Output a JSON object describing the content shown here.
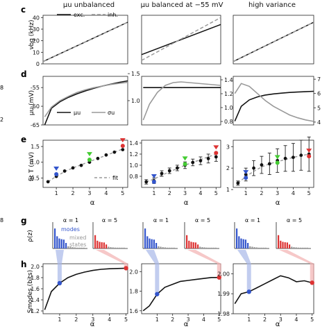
{
  "colors": {
    "exc": "#111111",
    "inh": "#999999",
    "blue": "#3355cc",
    "green": "#44cc33",
    "red": "#dd3333",
    "gray_curve": "#999999",
    "blue_light": "#a8b8e8",
    "red_light": "#f2b0b0"
  },
  "columns": [
    {
      "title": "μu unbalanced"
    },
    {
      "title": "μu balanced at −55 mV"
    },
    {
      "title": "high variance"
    }
  ],
  "rows": {
    "c": {
      "letter": "c",
      "ylabel": "νbg (kHz)",
      "yticks": [
        "0",
        "10",
        "20",
        "30",
        "40"
      ],
      "legend": {
        "exc": "exc.",
        "inh": "inh."
      }
    },
    "d": {
      "letter": "d",
      "ylabel": "μu (mV)",
      "yticks_left": [
        "-65",
        "-60",
        "-55"
      ],
      "yticks_right_1": [
        "1.0",
        "1.5"
      ],
      "yticks_right_2": [
        "0.8",
        "1.0",
        "1.2",
        "1.4"
      ],
      "yticks_right_3": [
        "4",
        "5",
        "6",
        "7"
      ],
      "legend": {
        "mu": "μu",
        "sigma": "σu"
      }
    },
    "e": {
      "letter": "e",
      "ylabel": "fit T (mV)",
      "xlabel": "α",
      "xticks": [
        "1",
        "2",
        "3",
        "4",
        "5"
      ],
      "yticks_1": [
        "0.5",
        "1.0",
        "1.5"
      ],
      "yticks_2": [
        "0.8",
        "1.0",
        "1.2",
        "1.4"
      ],
      "yticks_3": [
        "1",
        "2",
        "3"
      ],
      "legend": {
        "fit": "fit"
      }
    },
    "g": {
      "letter": "g",
      "ylabel": "ρ(z)",
      "alpha1": "α = 1",
      "alpha5": "α = 5",
      "modes": "modes",
      "mixed": "mixed",
      "states": "states"
    },
    "h": {
      "letter": "h",
      "ylabel": "Smodes (bits)",
      "xlabel": "α",
      "xticks": [
        "1",
        "2",
        "3",
        "4",
        "5"
      ],
      "yticks_1": [
        "1.2",
        "1.4",
        "1.6",
        "1.8",
        "2.0"
      ],
      "yticks_2": [
        "1.6",
        "1.8",
        "2.0"
      ],
      "yticks_3": [
        "1.98",
        "1.99",
        "2.00"
      ]
    }
  },
  "chart_data": [
    {
      "type": "line",
      "panel": "c1",
      "x": [
        0,
        5
      ],
      "series": [
        {
          "name": "exc.",
          "values": [
            2,
            36
          ]
        },
        {
          "name": "inh.",
          "values": [
            2,
            36
          ]
        }
      ],
      "ylim": [
        0,
        42
      ]
    },
    {
      "type": "line",
      "panel": "c2",
      "x": [
        0,
        5
      ],
      "series": [
        {
          "name": "exc.",
          "values": [
            8,
            34
          ]
        },
        {
          "name": "inh.",
          "values": [
            3,
            40
          ]
        }
      ],
      "ylim": [
        0,
        42
      ]
    },
    {
      "type": "line",
      "panel": "c3",
      "x": [
        0,
        5
      ],
      "series": [
        {
          "name": "exc.",
          "values": [
            2,
            36
          ]
        },
        {
          "name": "inh.",
          "values": [
            2,
            36
          ]
        }
      ],
      "ylim": [
        0,
        42
      ]
    },
    {
      "type": "line",
      "panel": "d1",
      "x": [
        0.1,
        0.5,
        1,
        1.5,
        2,
        2.5,
        3,
        3.5,
        4,
        4.5,
        5
      ],
      "series": [
        {
          "name": "μu",
          "values": [
            -65,
            -60.5,
            -58.8,
            -57.6,
            -56.7,
            -55.9,
            -55.2,
            -54.6,
            -54.1,
            -53.6,
            -53.2
          ]
        },
        {
          "name": "σu",
          "values": [
            0.7,
            0.88,
            1.0,
            1.08,
            1.15,
            1.2,
            1.24,
            1.27,
            1.3,
            1.32,
            1.34
          ]
        }
      ]
    },
    {
      "type": "line",
      "panel": "d2",
      "x": [
        0.1,
        0.5,
        1,
        1.5,
        2,
        2.5,
        3,
        3.5,
        4,
        4.5,
        5
      ],
      "series": [
        {
          "name": "μu",
          "values": [
            -55,
            -55,
            -55,
            -55,
            -55,
            -55,
            -55,
            -55,
            -55,
            -55,
            -55
          ]
        },
        {
          "name": "σu",
          "values": [
            0.82,
            1.05,
            1.22,
            1.32,
            1.36,
            1.37,
            1.36,
            1.35,
            1.34,
            1.33,
            1.32
          ]
        }
      ]
    },
    {
      "type": "line",
      "panel": "d3",
      "x": [
        0.1,
        0.5,
        1,
        1.5,
        2,
        2.5,
        3,
        3.5,
        4,
        4.5,
        5
      ],
      "series": [
        {
          "name": "μu",
          "values": [
            -64,
            -60,
            -58.3,
            -57.5,
            -57,
            -56.7,
            -56.5,
            -56.3,
            -56.2,
            -56.1,
            -56
          ]
        },
        {
          "name": "σu",
          "values": [
            6.0,
            6.7,
            6.5,
            6.0,
            5.5,
            5.1,
            4.8,
            4.5,
            4.3,
            4.15,
            4.05
          ]
        }
      ]
    },
    {
      "type": "scatter",
      "panel": "e1",
      "x": [
        0.5,
        1,
        1.5,
        2,
        2.5,
        3,
        3.5,
        4,
        4.5,
        5
      ],
      "series": [
        {
          "name": "T",
          "values": [
            0.38,
            0.55,
            0.72,
            0.82,
            0.9,
            1.0,
            1.12,
            1.23,
            1.32,
            1.4
          ]
        },
        {
          "name": "fit",
          "values": [
            0.38,
            0.55,
            0.7,
            0.82,
            0.92,
            1.02,
            1.12,
            1.22,
            1.32,
            1.42
          ]
        }
      ],
      "markers": [
        {
          "x": 1,
          "y": 0.62,
          "color": "blue"
        },
        {
          "x": 3,
          "y": 1.08,
          "color": "green"
        },
        {
          "x": 5,
          "y": 1.52,
          "color": "red"
        }
      ],
      "ylim": [
        0.2,
        1.7
      ]
    },
    {
      "type": "scatter",
      "panel": "e2",
      "x": [
        0.5,
        1,
        1.5,
        2,
        2.5,
        3,
        3.5,
        4,
        4.5,
        5
      ],
      "series": [
        {
          "name": "T",
          "values": [
            0.7,
            0.72,
            0.85,
            0.9,
            0.95,
            1.0,
            1.05,
            1.08,
            1.12,
            1.15
          ]
        },
        {
          "name": "fit",
          "values": [
            0.7,
            0.75,
            0.82,
            0.88,
            0.94,
            1.0,
            1.05,
            1.1,
            1.15,
            1.2
          ]
        }
      ],
      "err": [
        0.04,
        0.05,
        0.05,
        0.05,
        0.05,
        0.06,
        0.06,
        0.07,
        0.08,
        0.08
      ],
      "markers": [
        {
          "x": 1,
          "y": 0.7,
          "color": "blue"
        },
        {
          "x": 3,
          "y": 1.02,
          "color": "green"
        },
        {
          "x": 5,
          "y": 1.22,
          "color": "red"
        }
      ],
      "ylim": [
        0.6,
        1.45
      ]
    },
    {
      "type": "scatter",
      "panel": "e3",
      "x": [
        0.5,
        1,
        1.5,
        2,
        2.5,
        3,
        3.5,
        4,
        4.5,
        5
      ],
      "series": [
        {
          "name": "T",
          "values": [
            1.3,
            1.7,
            2.0,
            2.15,
            2.2,
            2.35,
            2.45,
            2.5,
            2.6,
            2.65
          ]
        },
        {
          "name": "fit",
          "values": [
            1.3,
            1.6,
            1.85,
            2.05,
            2.2,
            2.3,
            2.4,
            2.5,
            2.58,
            2.65
          ]
        }
      ],
      "err": [
        0.1,
        0.3,
        0.35,
        0.4,
        0.5,
        0.55,
        0.6,
        0.65,
        0.7,
        0.8
      ],
      "markers": [
        {
          "x": 1,
          "y": 1.55,
          "color": "blue"
        },
        {
          "x": 3,
          "y": 2.25,
          "color": "green"
        },
        {
          "x": 5,
          "y": 2.55,
          "color": "red"
        }
      ],
      "ylim": [
        1.1,
        3.3
      ]
    },
    {
      "type": "bar",
      "panel": "g",
      "alpha1_values": [
        0.9,
        0.55,
        0.45,
        0.42,
        0.4,
        0.25,
        0.1,
        0.08,
        0.06,
        0.05
      ],
      "alpha5_values": [
        0.6,
        0.35,
        0.3,
        0.28,
        0.27,
        0.18,
        0.08,
        0.06,
        0.05,
        0.04
      ]
    },
    {
      "type": "line",
      "panel": "h1",
      "x": [
        0.1,
        0.5,
        1,
        1.5,
        2,
        2.5,
        3,
        3.5,
        4,
        4.5,
        5
      ],
      "values": [
        1.22,
        1.55,
        1.7,
        1.8,
        1.86,
        1.9,
        1.93,
        1.95,
        1.96,
        1.965,
        1.97
      ],
      "ylim": [
        1.15,
        2.05
      ]
    },
    {
      "type": "line",
      "panel": "h2",
      "x": [
        0.1,
        0.5,
        1,
        1.5,
        2,
        2.5,
        3,
        3.5,
        4,
        4.5,
        5
      ],
      "values": [
        1.6,
        1.65,
        1.77,
        1.84,
        1.87,
        1.9,
        1.91,
        1.92,
        1.93,
        1.94,
        1.94
      ],
      "ylim": [
        1.57,
        2.08
      ]
    },
    {
      "type": "line",
      "panel": "h3",
      "x": [
        0.1,
        0.5,
        1,
        1.5,
        2,
        2.5,
        3,
        3.5,
        4,
        4.5,
        5
      ],
      "values": [
        1.985,
        1.99,
        1.991,
        1.993,
        1.995,
        1.997,
        1.999,
        1.998,
        1.996,
        1.9965,
        1.9955
      ],
      "ylim": [
        1.98,
        2.005
      ]
    }
  ]
}
